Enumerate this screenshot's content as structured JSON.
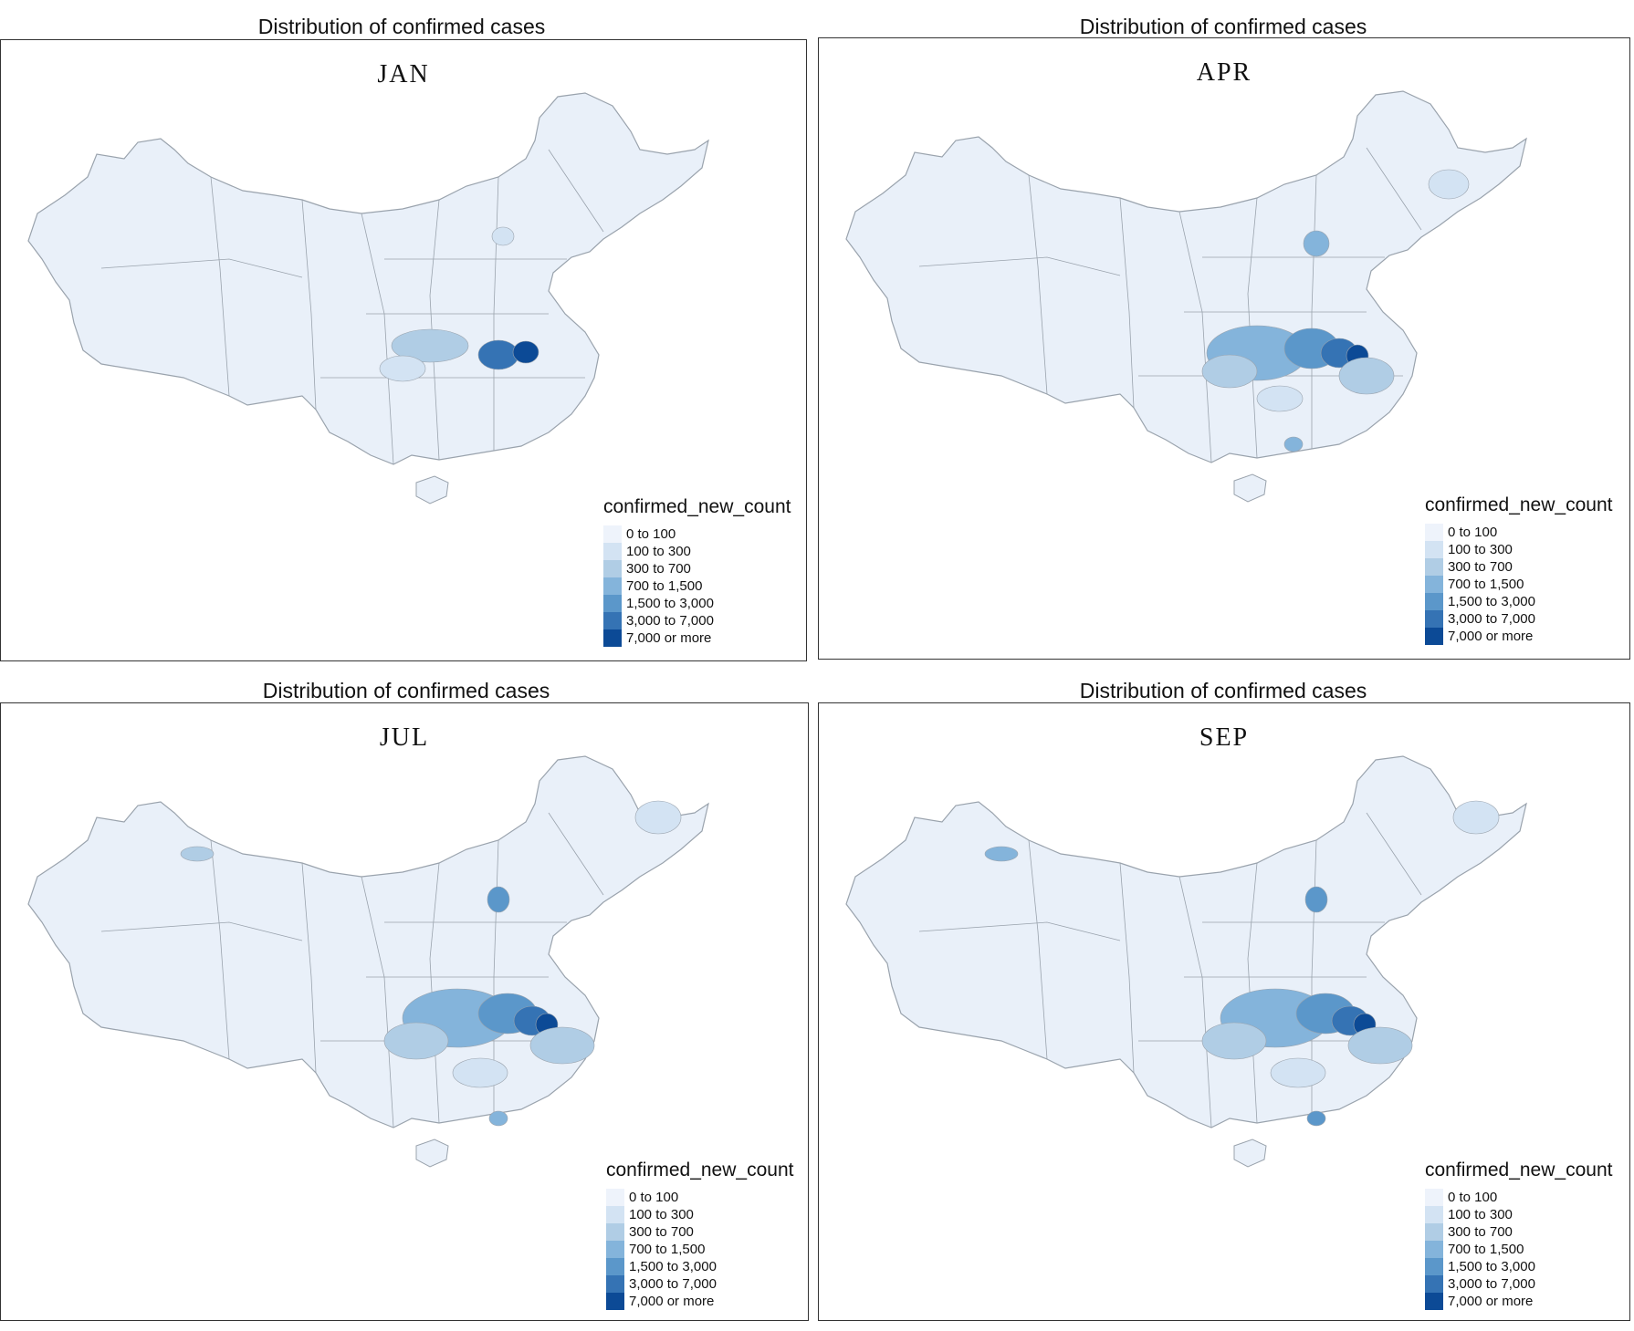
{
  "panels": [
    {
      "title": "Distribution of  confirmed cases",
      "month": "JAN"
    },
    {
      "title": "Distribution of  confirmed cases",
      "month": "APR"
    },
    {
      "title": "Distribution of  confirmed cases",
      "month": "JUL"
    },
    {
      "title": "Distribution of  confirmed cases",
      "month": "SEP"
    }
  ],
  "legend": {
    "title": "confirmed_new_count",
    "items": [
      {
        "label": "0 to 100",
        "color": "#eef3fb"
      },
      {
        "label": "100 to 300",
        "color": "#d3e3f3"
      },
      {
        "label": "300 to 700",
        "color": "#b0cde5"
      },
      {
        "label": "700 to 1,500",
        "color": "#84b4db"
      },
      {
        "label": "1,500 to 3,000",
        "color": "#5b97ca"
      },
      {
        "label": "3,000 to 7,000",
        "color": "#3573b4"
      },
      {
        "label": "7,000 or more",
        "color": "#0c4a96"
      }
    ]
  },
  "colors": {
    "border": "#9aa3ad",
    "base": "#e9f0f9"
  }
}
